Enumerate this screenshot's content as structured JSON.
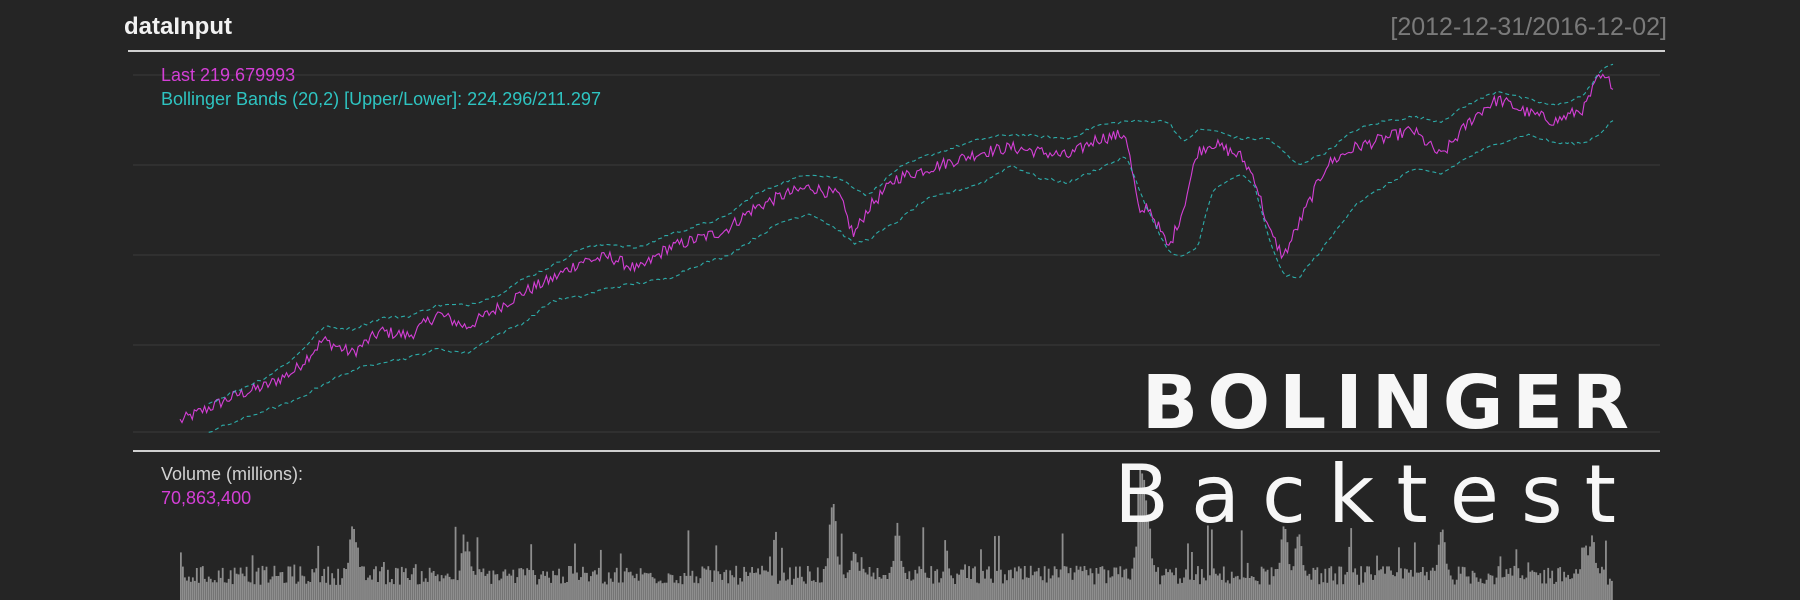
{
  "header": {
    "title": "dataInput",
    "date_range": "[2012-12-31/2016-12-02]"
  },
  "legend": {
    "last": "Last 219.679993",
    "bollinger": "Bollinger Bands (20,2) [Upper/Lower]: 224.296/211.297",
    "volume_label": "Volume (millions):",
    "volume_value": "70,863,400"
  },
  "brand": {
    "line1": "BOLINGER",
    "line2": "Backtest"
  },
  "colors": {
    "background": "#252525",
    "price": "#d43fd6",
    "bands": "#2ec4c1",
    "volume": "#8e8e8e",
    "separator": "#d0d0d0",
    "grid": "#3a3a3a"
  },
  "chart_data": [
    {
      "type": "line",
      "title": "dataInput",
      "subtitle": "[2012-12-31/2016-12-02]",
      "x_range": [
        "2012-12-31",
        "2016-12-02"
      ],
      "xlabel": "",
      "ylabel": "",
      "grid": true,
      "ylim": [
        140,
        225
      ],
      "series": [
        {
          "name": "Last",
          "style": "solid",
          "color": "#d43fd6",
          "x": [
            0,
            0.02,
            0.04,
            0.06,
            0.08,
            0.1,
            0.12,
            0.14,
            0.16,
            0.18,
            0.2,
            0.22,
            0.24,
            0.26,
            0.28,
            0.3,
            0.32,
            0.34,
            0.36,
            0.38,
            0.4,
            0.42,
            0.44,
            0.46,
            0.47,
            0.48,
            0.5,
            0.52,
            0.54,
            0.56,
            0.58,
            0.6,
            0.62,
            0.64,
            0.66,
            0.67,
            0.675,
            0.69,
            0.7,
            0.71,
            0.72,
            0.74,
            0.75,
            0.76,
            0.77,
            0.78,
            0.79,
            0.8,
            0.82,
            0.84,
            0.86,
            0.88,
            0.9,
            0.91,
            0.92,
            0.94,
            0.96,
            0.98,
            0.99,
            1.0
          ],
          "values": [
            142.5,
            145.5,
            148.5,
            150.5,
            154,
            161,
            158,
            163,
            162,
            167,
            164,
            168,
            172,
            175,
            179,
            180,
            177,
            182,
            184,
            186,
            191,
            194,
            196,
            194,
            185,
            191,
            198,
            200,
            202,
            204,
            205,
            204,
            203,
            207,
            208,
            189,
            192,
            182,
            191,
            204,
            206,
            203,
            198,
            186,
            180,
            187,
            194,
            201,
            205,
            207,
            209,
            203,
            211,
            214,
            216,
            213,
            211,
            214,
            221,
            219.68
          ]
        },
        {
          "name": "Upper Band",
          "style": "dashed",
          "color": "#2ec4c1",
          "x": [
            0.02,
            0.04,
            0.06,
            0.08,
            0.1,
            0.12,
            0.14,
            0.16,
            0.18,
            0.2,
            0.22,
            0.24,
            0.26,
            0.28,
            0.3,
            0.32,
            0.34,
            0.36,
            0.38,
            0.4,
            0.42,
            0.44,
            0.46,
            0.48,
            0.5,
            0.52,
            0.54,
            0.56,
            0.58,
            0.6,
            0.62,
            0.64,
            0.66,
            0.675,
            0.69,
            0.7,
            0.71,
            0.72,
            0.74,
            0.76,
            0.78,
            0.8,
            0.82,
            0.84,
            0.86,
            0.88,
            0.9,
            0.92,
            0.94,
            0.96,
            0.98,
            0.99,
            1.0
          ],
          "values": [
            146.5,
            149.5,
            152.5,
            157,
            164,
            163.5,
            166,
            166.5,
            169,
            169,
            171,
            175,
            178,
            182,
            183,
            182,
            185,
            187,
            189,
            194,
            197,
            199,
            198,
            194,
            200,
            203,
            205,
            207,
            208,
            207.5,
            207,
            210,
            211,
            211,
            211,
            206,
            209,
            209,
            207,
            207,
            201,
            204,
            209,
            211,
            212,
            211,
            215,
            218,
            216,
            214.5,
            217,
            222,
            224.3
          ]
        },
        {
          "name": "Lower Band",
          "style": "dashed",
          "color": "#2ec4c1",
          "x": [
            0.02,
            0.04,
            0.06,
            0.08,
            0.1,
            0.12,
            0.14,
            0.16,
            0.18,
            0.2,
            0.22,
            0.24,
            0.26,
            0.28,
            0.3,
            0.32,
            0.34,
            0.36,
            0.38,
            0.4,
            0.42,
            0.44,
            0.46,
            0.47,
            0.48,
            0.5,
            0.52,
            0.54,
            0.56,
            0.58,
            0.6,
            0.62,
            0.64,
            0.66,
            0.675,
            0.69,
            0.7,
            0.71,
            0.72,
            0.74,
            0.75,
            0.76,
            0.77,
            0.78,
            0.8,
            0.82,
            0.84,
            0.86,
            0.88,
            0.9,
            0.92,
            0.94,
            0.96,
            0.98,
            0.99,
            1.0
          ],
          "values": [
            140,
            142.5,
            145,
            147,
            151,
            154,
            156,
            157,
            159,
            158,
            162,
            165,
            170,
            171,
            173,
            174,
            175,
            178,
            180,
            184,
            188,
            190,
            186,
            183,
            184,
            188,
            193,
            195,
            197,
            201,
            198,
            197,
            200,
            203,
            191,
            181,
            180,
            182,
            195,
            199,
            196,
            184,
            176,
            175,
            183,
            192,
            196,
            200,
            199,
            203,
            206,
            208,
            206,
            206,
            208,
            211.3
          ]
        }
      ]
    },
    {
      "type": "bar",
      "title": "Volume (millions):",
      "last_value": "70,863,400",
      "color": "#8e8e8e",
      "ylim": [
        0,
        420
      ],
      "baseline": 80,
      "spikes": [
        {
          "x": 0.12,
          "value": 230
        },
        {
          "x": 0.2,
          "value": 170
        },
        {
          "x": 0.455,
          "value": 300
        },
        {
          "x": 0.47,
          "value": 150
        },
        {
          "x": 0.5,
          "value": 225
        },
        {
          "x": 0.67,
          "value": 410
        },
        {
          "x": 0.672,
          "value": 360
        },
        {
          "x": 0.675,
          "value": 250
        },
        {
          "x": 0.77,
          "value": 230
        },
        {
          "x": 0.78,
          "value": 205
        },
        {
          "x": 0.88,
          "value": 220
        },
        {
          "x": 0.98,
          "value": 170
        },
        {
          "x": 0.985,
          "value": 195
        }
      ]
    }
  ]
}
